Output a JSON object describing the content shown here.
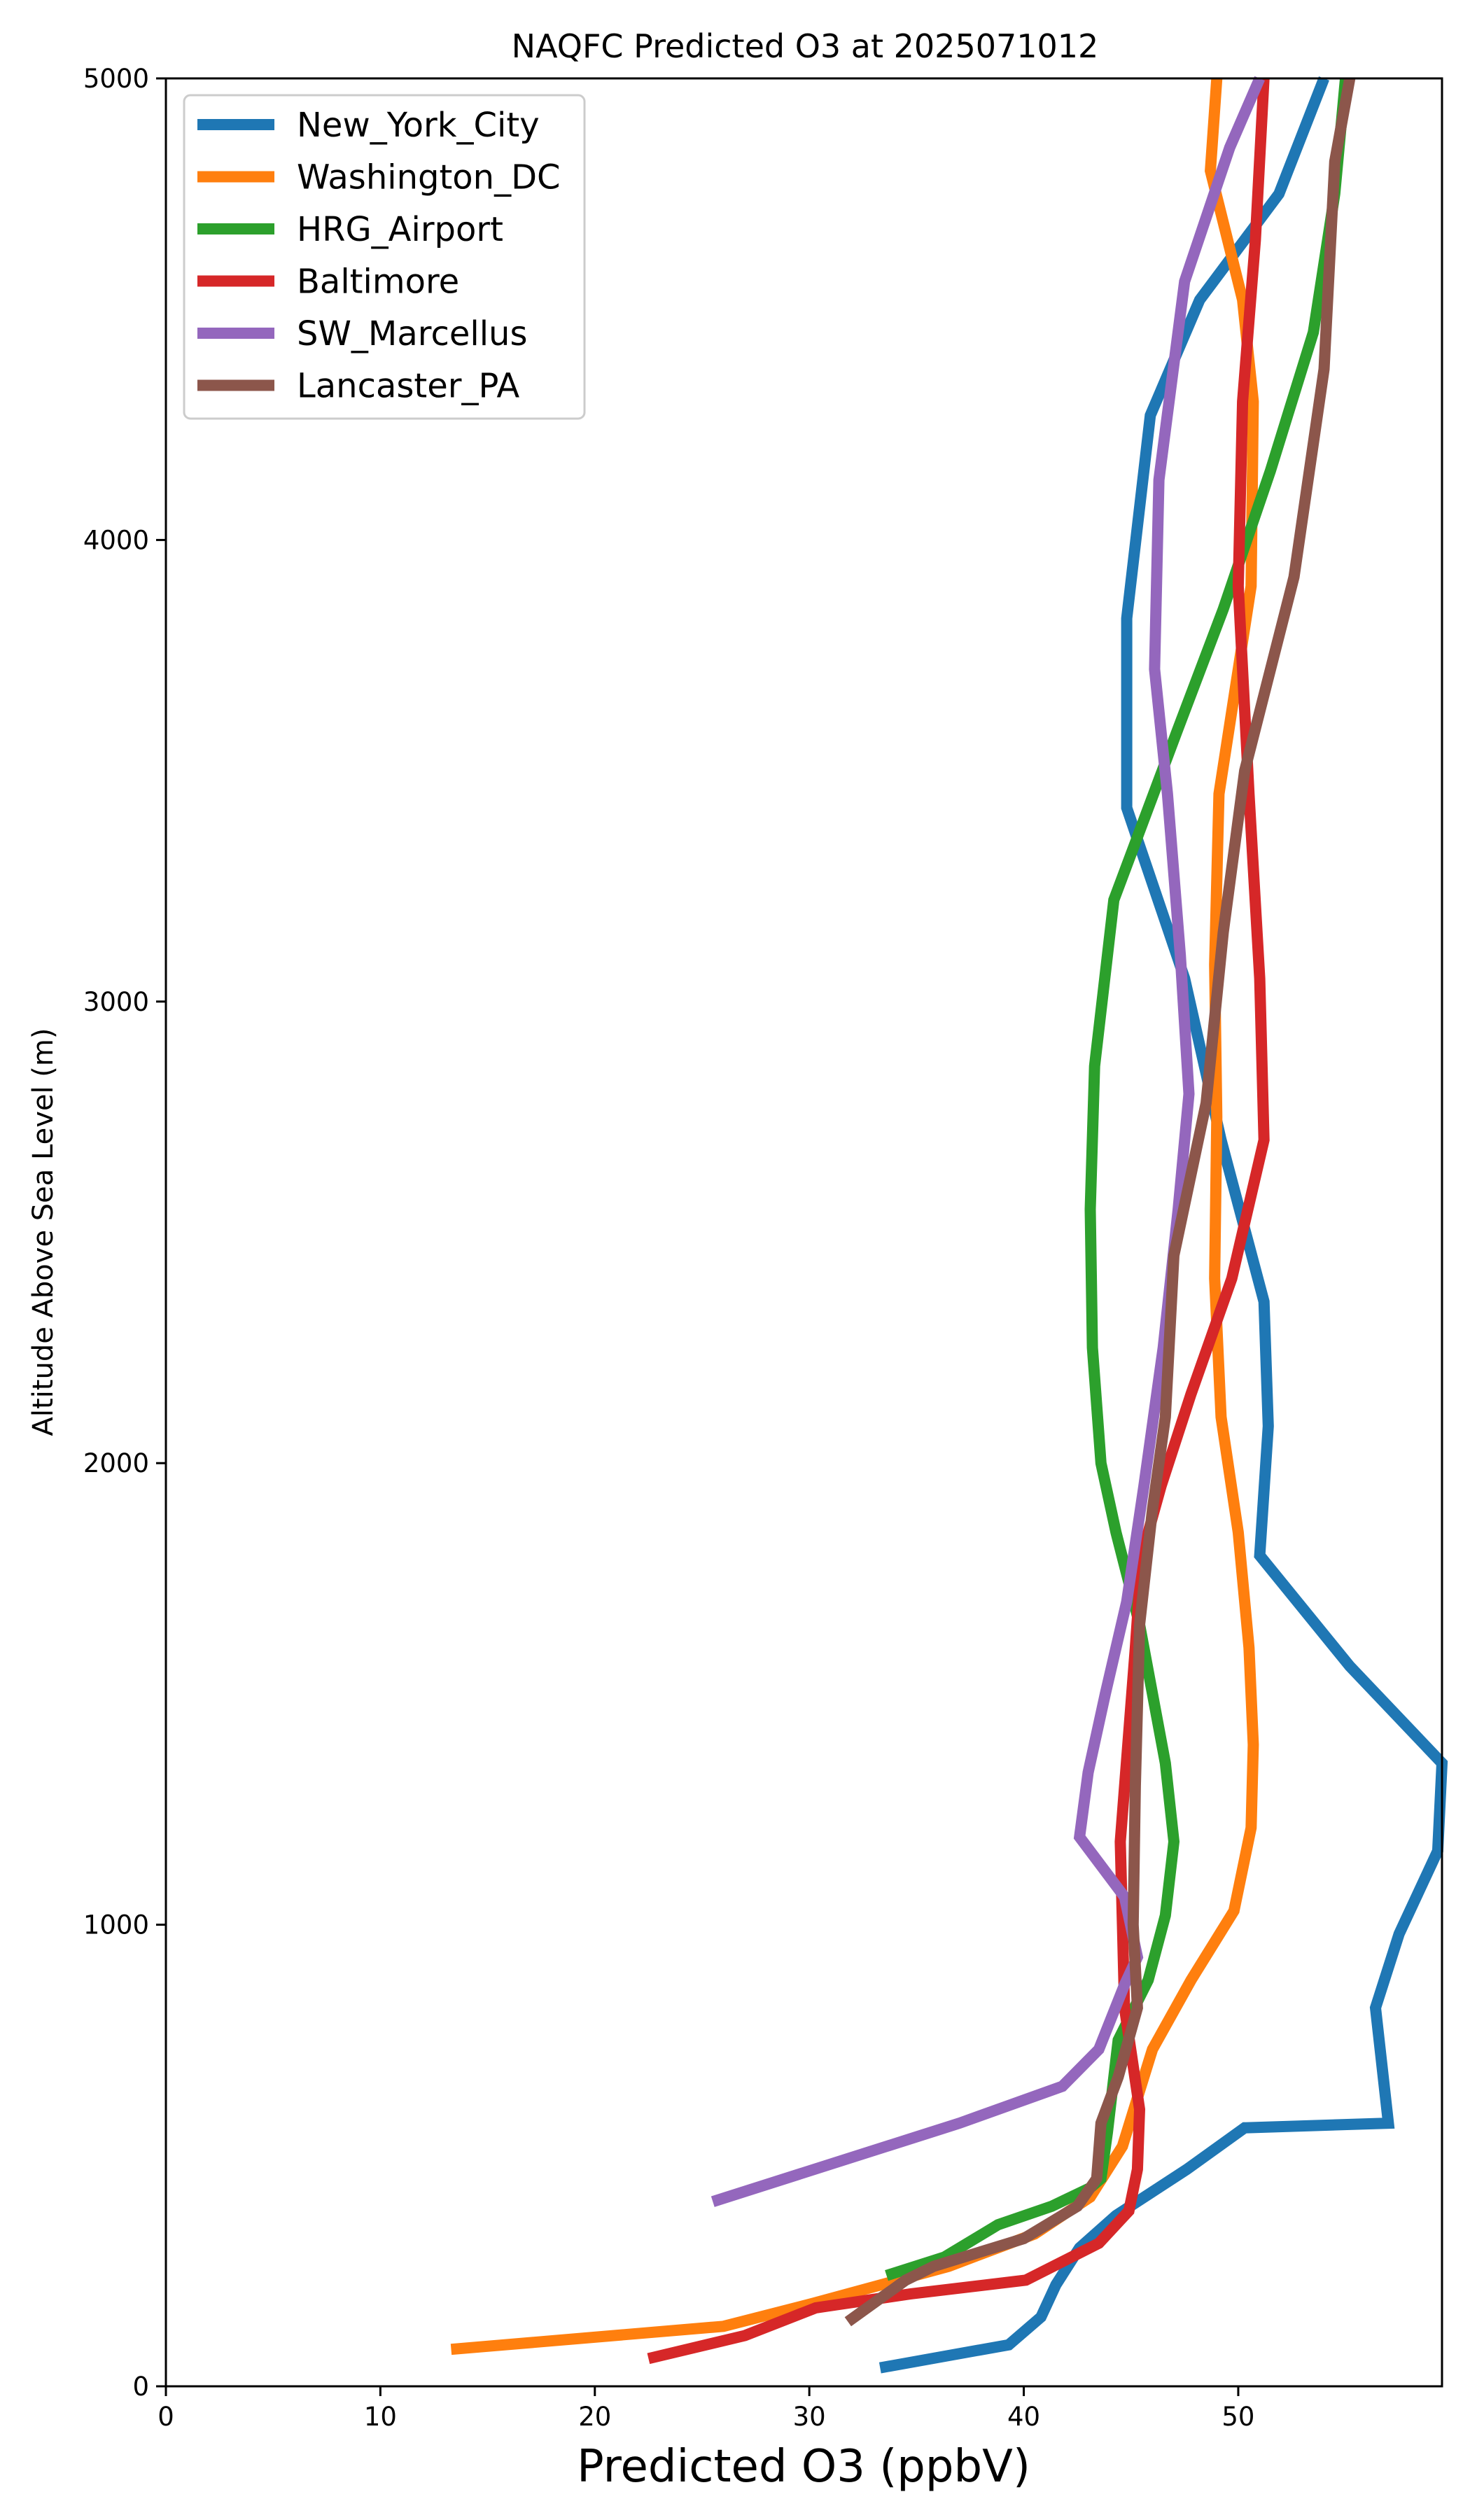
{
  "chart_data": {
    "type": "line",
    "title": "NAQFC Predicted O3 at 2025071012",
    "xlabel": "Predicted O3 (ppbV)",
    "ylabel": "Altitude Above Sea Level (m)",
    "xlim": [
      0,
      59.5
    ],
    "ylim": [
      0,
      5000
    ],
    "xticks": [
      0,
      10,
      20,
      30,
      40,
      50
    ],
    "yticks": [
      0,
      1000,
      2000,
      3000,
      4000,
      5000
    ],
    "grid": false,
    "legend_position": "top-left",
    "series": [
      {
        "name": "New_York_City",
        "color": "#1f77b4",
        "points": [
          [
            33.3,
            40
          ],
          [
            39.3,
            90
          ],
          [
            40.8,
            150
          ],
          [
            41.5,
            220
          ],
          [
            42.6,
            300
          ],
          [
            44.3,
            370
          ],
          [
            47.6,
            470
          ],
          [
            50.3,
            560
          ],
          [
            57.0,
            570
          ],
          [
            56.4,
            820
          ],
          [
            57.5,
            980
          ],
          [
            59.3,
            1160
          ],
          [
            59.5,
            1350
          ],
          [
            55.2,
            1560
          ],
          [
            51.0,
            1800
          ],
          [
            51.4,
            2080
          ],
          [
            51.2,
            2350
          ],
          [
            49.2,
            2700
          ],
          [
            47.5,
            3050
          ],
          [
            44.8,
            3420
          ],
          [
            44.8,
            3830
          ],
          [
            45.9,
            4270
          ],
          [
            48.2,
            4520
          ],
          [
            51.9,
            4750
          ],
          [
            54.0,
            5000
          ]
        ]
      },
      {
        "name": "Washington_DC",
        "color": "#ff7f0e",
        "points": [
          [
            13.3,
            80
          ],
          [
            26.0,
            130
          ],
          [
            30.2,
            180
          ],
          [
            36.5,
            260
          ],
          [
            40.5,
            330
          ],
          [
            43.1,
            410
          ],
          [
            44.6,
            520
          ],
          [
            46.0,
            730
          ],
          [
            47.8,
            880
          ],
          [
            49.8,
            1030
          ],
          [
            50.6,
            1210
          ],
          [
            50.7,
            1390
          ],
          [
            50.5,
            1600
          ],
          [
            50.0,
            1850
          ],
          [
            49.2,
            2100
          ],
          [
            48.9,
            2400
          ],
          [
            49.0,
            2750
          ],
          [
            48.9,
            3080
          ],
          [
            49.1,
            3450
          ],
          [
            50.6,
            3900
          ],
          [
            50.7,
            4300
          ],
          [
            50.2,
            4520
          ],
          [
            48.7,
            4800
          ],
          [
            49.0,
            5000
          ]
        ]
      },
      {
        "name": "HRG_Airport",
        "color": "#2ca02c",
        "points": [
          [
            33.6,
            240
          ],
          [
            36.3,
            280
          ],
          [
            38.8,
            350
          ],
          [
            41.3,
            390
          ],
          [
            43.1,
            430
          ],
          [
            43.6,
            450
          ],
          [
            43.9,
            550
          ],
          [
            44.4,
            750
          ],
          [
            45.8,
            880
          ],
          [
            46.6,
            1020
          ],
          [
            47.0,
            1180
          ],
          [
            46.6,
            1350
          ],
          [
            45.4,
            1650
          ],
          [
            44.3,
            1850
          ],
          [
            43.6,
            2000
          ],
          [
            43.2,
            2250
          ],
          [
            43.1,
            2550
          ],
          [
            43.3,
            2860
          ],
          [
            44.2,
            3220
          ],
          [
            47.1,
            3580
          ],
          [
            49.3,
            3850
          ],
          [
            51.5,
            4150
          ],
          [
            53.5,
            4450
          ],
          [
            54.5,
            4750
          ],
          [
            55.0,
            5000
          ]
        ]
      },
      {
        "name": "Baltimore",
        "color": "#d62728",
        "points": [
          [
            22.5,
            60
          ],
          [
            27.0,
            110
          ],
          [
            30.3,
            170
          ],
          [
            34.7,
            200
          ],
          [
            40.1,
            230
          ],
          [
            43.5,
            310
          ],
          [
            44.9,
            380
          ],
          [
            45.3,
            470
          ],
          [
            45.4,
            600
          ],
          [
            44.7,
            820
          ],
          [
            44.6,
            1000
          ],
          [
            44.5,
            1180
          ],
          [
            45.2,
            1600
          ],
          [
            45.5,
            1800
          ],
          [
            46.4,
            1950
          ],
          [
            47.8,
            2150
          ],
          [
            49.7,
            2400
          ],
          [
            51.2,
            2700
          ],
          [
            51.0,
            3050
          ],
          [
            50.5,
            3450
          ],
          [
            50.0,
            3900
          ],
          [
            50.2,
            4300
          ],
          [
            50.8,
            4650
          ],
          [
            51.2,
            5000
          ]
        ]
      },
      {
        "name": "SW_Marcellus",
        "color": "#9467bd",
        "points": [
          [
            25.5,
            400
          ],
          [
            37.0,
            570
          ],
          [
            41.8,
            650
          ],
          [
            43.5,
            730
          ],
          [
            44.7,
            870
          ],
          [
            45.3,
            930
          ],
          [
            44.7,
            1060
          ],
          [
            42.6,
            1190
          ],
          [
            43.0,
            1330
          ],
          [
            43.8,
            1500
          ],
          [
            44.8,
            1700
          ],
          [
            45.6,
            1950
          ],
          [
            46.5,
            2250
          ],
          [
            47.2,
            2550
          ],
          [
            47.7,
            2800
          ],
          [
            47.3,
            3100
          ],
          [
            46.7,
            3450
          ],
          [
            46.1,
            3720
          ],
          [
            46.3,
            4130
          ],
          [
            47.5,
            4560
          ],
          [
            49.6,
            4850
          ],
          [
            51.0,
            5000
          ]
        ]
      },
      {
        "name": "Lancaster_PA",
        "color": "#8c564b",
        "points": [
          [
            31.8,
            140
          ],
          [
            34.5,
            230
          ],
          [
            35.8,
            260
          ],
          [
            40.0,
            320
          ],
          [
            42.5,
            390
          ],
          [
            43.4,
            450
          ],
          [
            43.6,
            570
          ],
          [
            44.4,
            670
          ],
          [
            45.3,
            820
          ],
          [
            45.1,
            1000
          ],
          [
            45.2,
            1300
          ],
          [
            45.4,
            1650
          ],
          [
            46.0,
            1900
          ],
          [
            46.6,
            2100
          ],
          [
            47.0,
            2450
          ],
          [
            48.5,
            2780
          ],
          [
            49.3,
            3150
          ],
          [
            50.3,
            3500
          ],
          [
            52.6,
            3920
          ],
          [
            54.0,
            4370
          ],
          [
            54.5,
            4820
          ],
          [
            55.2,
            5000
          ]
        ]
      }
    ]
  }
}
